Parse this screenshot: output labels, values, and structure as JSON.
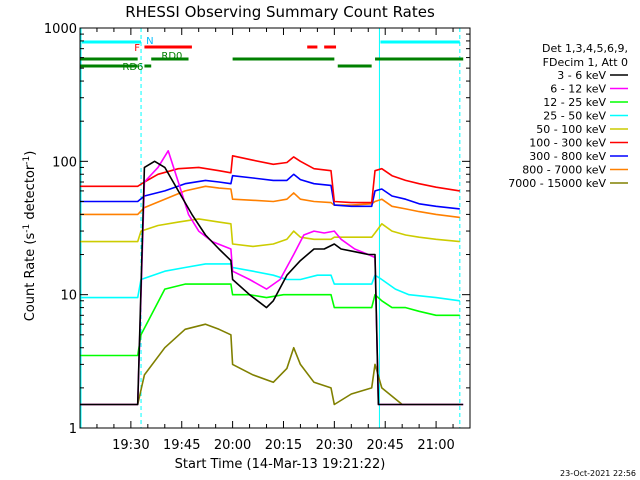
{
  "chart_data": {
    "type": "line",
    "title": "RHESSI Observing Summary Count Rates",
    "xlabel": "Start Time (14-Mar-13 19:21:22)",
    "ylabel": "Count Rate (s",
    "ylabel_sup1": "-1",
    "ylabel_mid": " detector",
    "ylabel_sup2": "-1",
    "ylabel_end": ")",
    "y_scale": "log",
    "ylim": [
      1,
      1000
    ],
    "xlim_minutes": [
      -5,
      110
    ],
    "x_ticks": [
      {
        "minute": 10,
        "label": "19:30"
      },
      {
        "minute": 25,
        "label": "19:45"
      },
      {
        "minute": 40,
        "label": "20:00"
      },
      {
        "minute": 55,
        "label": "20:15"
      },
      {
        "minute": 70,
        "label": "20:30"
      },
      {
        "minute": 85,
        "label": "20:45"
      },
      {
        "minute": 100,
        "label": "21:00"
      }
    ],
    "y_ticks": [
      {
        "value": 1,
        "label": "1"
      },
      {
        "value": 10,
        "label": "10"
      },
      {
        "value": 100,
        "label": "100"
      },
      {
        "value": 1000,
        "label": "1000"
      }
    ],
    "legend_header": [
      "Det 1,3,4,5,6,9,",
      "FDecim 1, Att 0"
    ],
    "footer_date": "23-Oct-2021 22:56",
    "flags": {
      "n": "N",
      "f": "F",
      "rd0": "RD0",
      "rd6": "RD6"
    },
    "night_intervals_minutes": [
      [
        -5,
        13
      ],
      [
        83,
        107
      ]
    ],
    "series": [
      {
        "name": "3 - 6 keV",
        "color": "#000000",
        "points": [
          [
            -5,
            1.5
          ],
          [
            12,
            1.5
          ],
          [
            14,
            90
          ],
          [
            17,
            100
          ],
          [
            20,
            90
          ],
          [
            24,
            60
          ],
          [
            28,
            40
          ],
          [
            32,
            28
          ],
          [
            36,
            22
          ],
          [
            39.5,
            18
          ],
          [
            40,
            13
          ],
          [
            45,
            10
          ],
          [
            50,
            8
          ],
          [
            52,
            9
          ],
          [
            56,
            14
          ],
          [
            60,
            18
          ],
          [
            64,
            22
          ],
          [
            67,
            22
          ],
          [
            70,
            24
          ],
          [
            72,
            22
          ],
          [
            76,
            21
          ],
          [
            80,
            20
          ],
          [
            82,
            20
          ],
          [
            83,
            1.5
          ],
          [
            108,
            1.5
          ]
        ]
      },
      {
        "name": "6 - 12 keV",
        "color": "#ff00ff",
        "points": [
          [
            -5,
            1.5
          ],
          [
            12,
            1.5
          ],
          [
            14,
            70
          ],
          [
            18,
            90
          ],
          [
            21,
            120
          ],
          [
            24,
            70
          ],
          [
            27,
            40
          ],
          [
            30,
            30
          ],
          [
            34,
            25
          ],
          [
            39.5,
            22
          ],
          [
            40,
            15
          ],
          [
            45,
            13
          ],
          [
            50,
            11
          ],
          [
            54,
            13
          ],
          [
            58,
            20
          ],
          [
            61,
            28
          ],
          [
            64,
            30
          ],
          [
            67,
            29
          ],
          [
            70,
            30
          ],
          [
            72,
            26
          ],
          [
            76,
            22
          ],
          [
            80,
            20
          ],
          [
            82,
            19
          ],
          [
            83,
            1.5
          ],
          [
            108,
            1.5
          ]
        ]
      },
      {
        "name": "12 - 25 keV",
        "color": "#00ff00",
        "points": [
          [
            -5,
            3.5
          ],
          [
            12,
            3.5
          ],
          [
            13,
            5
          ],
          [
            20,
            11
          ],
          [
            26,
            12
          ],
          [
            32,
            12
          ],
          [
            39.5,
            12
          ],
          [
            40,
            10
          ],
          [
            45,
            10
          ],
          [
            50,
            9.5
          ],
          [
            55,
            10
          ],
          [
            60,
            10
          ],
          [
            65,
            10
          ],
          [
            69,
            10
          ],
          [
            70,
            8
          ],
          [
            75,
            8
          ],
          [
            81,
            8
          ],
          [
            82,
            10
          ],
          [
            84,
            9
          ],
          [
            87,
            8
          ],
          [
            91,
            8
          ],
          [
            95,
            7.5
          ],
          [
            100,
            7
          ],
          [
            107,
            7
          ]
        ]
      },
      {
        "name": "25 - 50 keV",
        "color": "#00ffff",
        "points": [
          [
            -5,
            9.5
          ],
          [
            12,
            9.5
          ],
          [
            13,
            13
          ],
          [
            20,
            15
          ],
          [
            26,
            16
          ],
          [
            32,
            17
          ],
          [
            39.5,
            17
          ],
          [
            40,
            16
          ],
          [
            46,
            15
          ],
          [
            52,
            14
          ],
          [
            56,
            13
          ],
          [
            60,
            13
          ],
          [
            65,
            14
          ],
          [
            69,
            14
          ],
          [
            70,
            12
          ],
          [
            75,
            12
          ],
          [
            81,
            12
          ],
          [
            82,
            14
          ],
          [
            84,
            13
          ],
          [
            88,
            11
          ],
          [
            92,
            10
          ],
          [
            100,
            9.5
          ],
          [
            107,
            9
          ]
        ]
      },
      {
        "name": "50 - 100 keV",
        "color": "#cccc00",
        "points": [
          [
            -5,
            25
          ],
          [
            12,
            25
          ],
          [
            13,
            30
          ],
          [
            18,
            33
          ],
          [
            24,
            35
          ],
          [
            30,
            37
          ],
          [
            36,
            35
          ],
          [
            39.5,
            34
          ],
          [
            40,
            24
          ],
          [
            46,
            23
          ],
          [
            52,
            24
          ],
          [
            56,
            26
          ],
          [
            58,
            30
          ],
          [
            60,
            27
          ],
          [
            64,
            26
          ],
          [
            69,
            26
          ],
          [
            70,
            27
          ],
          [
            75,
            27
          ],
          [
            81,
            27
          ],
          [
            82,
            29
          ],
          [
            84,
            34
          ],
          [
            87,
            30
          ],
          [
            91,
            28
          ],
          [
            95,
            27
          ],
          [
            100,
            26
          ],
          [
            107,
            25
          ]
        ]
      },
      {
        "name": "100 - 300 keV",
        "color": "#ff0000",
        "points": [
          [
            -5,
            65
          ],
          [
            12,
            65
          ],
          [
            14,
            70
          ],
          [
            18,
            80
          ],
          [
            24,
            88
          ],
          [
            30,
            90
          ],
          [
            36,
            85
          ],
          [
            39.5,
            82
          ],
          [
            40,
            110
          ],
          [
            46,
            102
          ],
          [
            52,
            95
          ],
          [
            56,
            98
          ],
          [
            58,
            108
          ],
          [
            60,
            100
          ],
          [
            64,
            88
          ],
          [
            69,
            85
          ],
          [
            70,
            50
          ],
          [
            75,
            49
          ],
          [
            81,
            49
          ],
          [
            82,
            85
          ],
          [
            84,
            88
          ],
          [
            87,
            78
          ],
          [
            91,
            72
          ],
          [
            95,
            68
          ],
          [
            100,
            64
          ],
          [
            107,
            60
          ]
        ]
      },
      {
        "name": "300 - 800 keV",
        "color": "#0000ff",
        "points": [
          [
            -5,
            50
          ],
          [
            12,
            50
          ],
          [
            14,
            55
          ],
          [
            20,
            60
          ],
          [
            26,
            68
          ],
          [
            32,
            72
          ],
          [
            36,
            70
          ],
          [
            39.5,
            68
          ],
          [
            40,
            78
          ],
          [
            46,
            75
          ],
          [
            52,
            72
          ],
          [
            56,
            72
          ],
          [
            58,
            80
          ],
          [
            60,
            73
          ],
          [
            64,
            68
          ],
          [
            69,
            66
          ],
          [
            70,
            47
          ],
          [
            75,
            46
          ],
          [
            81,
            46
          ],
          [
            82,
            60
          ],
          [
            84,
            62
          ],
          [
            87,
            55
          ],
          [
            91,
            52
          ],
          [
            95,
            48
          ],
          [
            100,
            46
          ],
          [
            107,
            44
          ]
        ]
      },
      {
        "name": "800 - 7000 keV",
        "color": "#ff8000",
        "points": [
          [
            -5,
            40
          ],
          [
            12,
            40
          ],
          [
            14,
            45
          ],
          [
            20,
            52
          ],
          [
            26,
            60
          ],
          [
            32,
            65
          ],
          [
            36,
            63
          ],
          [
            39.5,
            62
          ],
          [
            40,
            52
          ],
          [
            46,
            51
          ],
          [
            52,
            50
          ],
          [
            56,
            52
          ],
          [
            58,
            58
          ],
          [
            60,
            52
          ],
          [
            64,
            50
          ],
          [
            69,
            49
          ],
          [
            70,
            47
          ],
          [
            75,
            47
          ],
          [
            81,
            48
          ],
          [
            82,
            50
          ],
          [
            84,
            52
          ],
          [
            87,
            46
          ],
          [
            91,
            44
          ],
          [
            95,
            42
          ],
          [
            100,
            40
          ],
          [
            107,
            38
          ]
        ]
      },
      {
        "name": "7000 - 15000 keV",
        "color": "#808000",
        "points": [
          [
            -5,
            1.5
          ],
          [
            12,
            1.5
          ],
          [
            14,
            2.5
          ],
          [
            20,
            4
          ],
          [
            26,
            5.5
          ],
          [
            32,
            6
          ],
          [
            36,
            5.5
          ],
          [
            39.5,
            5
          ],
          [
            40,
            3
          ],
          [
            46,
            2.5
          ],
          [
            52,
            2.2
          ],
          [
            56,
            2.8
          ],
          [
            58,
            4
          ],
          [
            60,
            3
          ],
          [
            64,
            2.2
          ],
          [
            69,
            2
          ],
          [
            70,
            1.5
          ],
          [
            75,
            1.8
          ],
          [
            81,
            2
          ],
          [
            82,
            3
          ],
          [
            84,
            2
          ],
          [
            90,
            1.5
          ],
          [
            100,
            1.5
          ],
          [
            107,
            1.5
          ]
        ]
      }
    ]
  }
}
